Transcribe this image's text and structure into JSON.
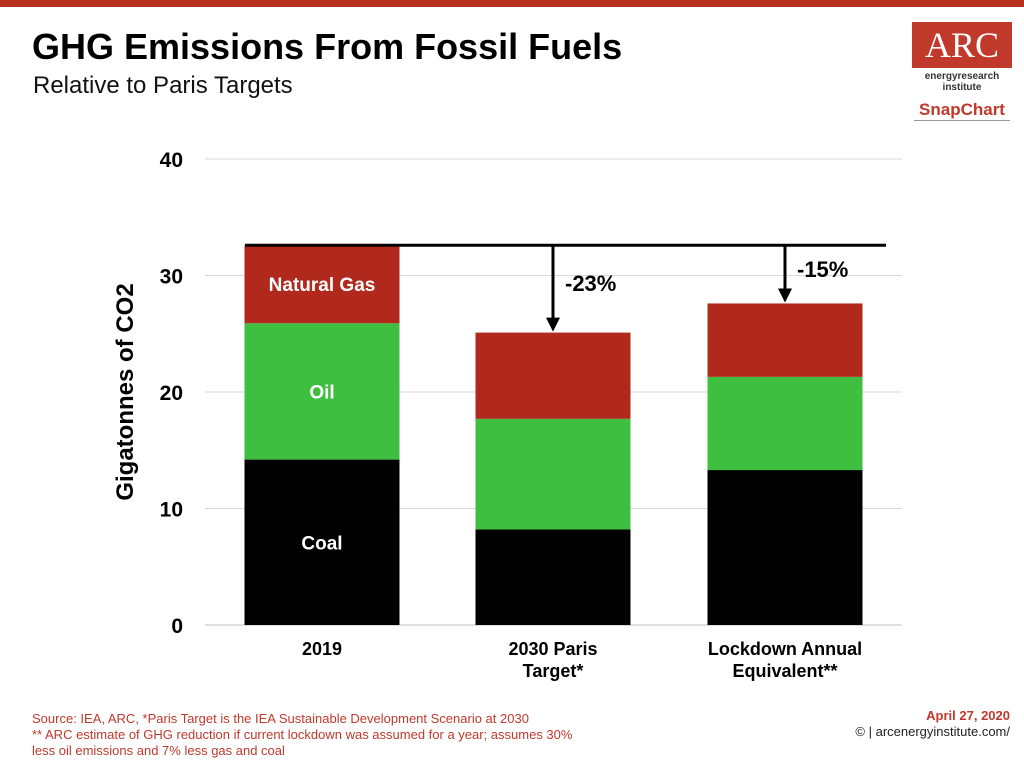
{
  "header": {
    "title": "GHG Emissions From Fossil Fuels",
    "subtitle": "Relative to Paris Targets"
  },
  "logo": {
    "text": "ARC",
    "tagline_line1": "energyresearch",
    "tagline_line2": "institute",
    "product": "SnapChart"
  },
  "chart_data": {
    "type": "bar",
    "stacked": true,
    "categories": [
      [
        "2019"
      ],
      [
        "2030 Paris",
        "Target*"
      ],
      [
        "Lockdown Annual",
        "Equivalent**"
      ]
    ],
    "series": [
      {
        "name": "Coal",
        "color": "#000000",
        "values": [
          14.2,
          8.2,
          13.3
        ]
      },
      {
        "name": "Oil",
        "color": "#3fbf3f",
        "values": [
          11.7,
          9.5,
          8.0
        ]
      },
      {
        "name": "Natural Gas",
        "color": "#b1281c",
        "values": [
          6.7,
          7.4,
          6.3
        ]
      }
    ],
    "ylabel": "Gigatonnes of CO2",
    "ylim": [
      0,
      40
    ],
    "yticks": [
      0,
      10,
      20,
      30,
      40
    ],
    "grid": true,
    "reference_level": 32.6,
    "annotations": [
      "-23%",
      "-15%"
    ]
  },
  "footer": {
    "source_lines": [
      "Source: IEA, ARC, *Paris Target is the IEA Sustainable Development Scenario at 2030",
      "** ARC estimate of GHG reduction if current lockdown was assumed for a year; assumes 30%",
      "less oil emissions and 7% less gas and coal"
    ],
    "date": "April 27, 2020",
    "credit": "© | arcenergyinstitute.com/"
  }
}
